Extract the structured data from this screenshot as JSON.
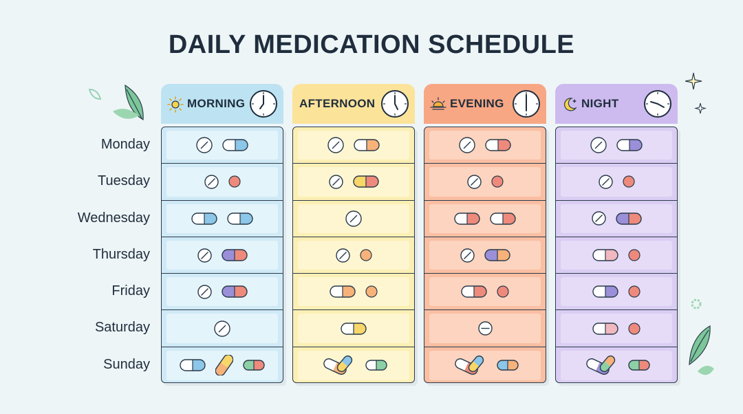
{
  "title": "DAILY MEDICATION SCHEDULE",
  "days": [
    "Monday",
    "Tuesday",
    "Wednesday",
    "Thursday",
    "Friday",
    "Saturday",
    "Sunday"
  ],
  "columns": [
    {
      "id": "morning",
      "label": "MORNING",
      "icon": "sun-icon",
      "clock": "clock-icon",
      "head_color": "#bde3f2",
      "body_color": "#cfeaf6",
      "cell_color": "#e4f4fb",
      "cells": [
        [
          "round-tablet",
          "capsule-white-blue"
        ],
        [
          "round-tablet-small",
          "red-dot"
        ],
        [
          "capsule-white-blue",
          "capsule-white-blue"
        ],
        [
          "round-tablet-small",
          "capsule-purple-red"
        ],
        [
          "round-tablet-small",
          "capsule-purple-red"
        ],
        [
          "round-tablet"
        ],
        [
          "capsule-white-blue",
          "capsule-orange-yellow-tilted",
          "capsule-green-red"
        ]
      ]
    },
    {
      "id": "afternoon",
      "label": "AFTERNOON",
      "icon": "none",
      "clock": "clock-icon",
      "head_color": "#fbe39a",
      "body_color": "#fcefb4",
      "cell_color": "#fdf6d0",
      "cells": [
        [
          "round-tablet",
          "capsule-white-orange"
        ],
        [
          "round-tablet-small",
          "capsule-yellow-red"
        ],
        [
          "round-tablet"
        ],
        [
          "round-tablet-small",
          "orange-dot"
        ],
        [
          "capsule-white-orange",
          "orange-dot"
        ],
        [
          "capsule-white-yellow"
        ],
        [
          "capsule-pair-tilted",
          "capsule-white-green"
        ]
      ]
    },
    {
      "id": "evening",
      "label": "EVENING",
      "icon": "sunset-icon",
      "clock": "clock-icon",
      "head_color": "#f8a784",
      "body_color": "#fabea2",
      "cell_color": "#fcd4bf",
      "cells": [
        [
          "round-tablet",
          "capsule-white-red"
        ],
        [
          "round-tablet-small",
          "red-dot"
        ],
        [
          "capsule-white-red",
          "capsule-white-red"
        ],
        [
          "round-tablet-small",
          "capsule-purple-orange"
        ],
        [
          "capsule-white-red",
          "red-dot"
        ],
        [
          "round-tablet-line"
        ],
        [
          "capsule-pair-tilted-red",
          "capsule-blue-orange"
        ]
      ]
    },
    {
      "id": "night",
      "label": "NIGHT",
      "icon": "moon-icon",
      "clock": "clock-icon",
      "head_color": "#cdbbef",
      "body_color": "#dacdf3",
      "cell_color": "#e6dcf7",
      "cells": [
        [
          "round-tablet",
          "capsule-white-purple"
        ],
        [
          "round-tablet-small",
          "red-dot"
        ],
        [
          "round-tablet-small",
          "capsule-purple-red"
        ],
        [
          "capsule-white-pink",
          "red-dot"
        ],
        [
          "capsule-white-purple",
          "red-dot"
        ],
        [
          "capsule-white-pink",
          "red-dot"
        ],
        [
          "capsule-pair-tilted-purple",
          "capsule-green-red"
        ]
      ]
    }
  ]
}
